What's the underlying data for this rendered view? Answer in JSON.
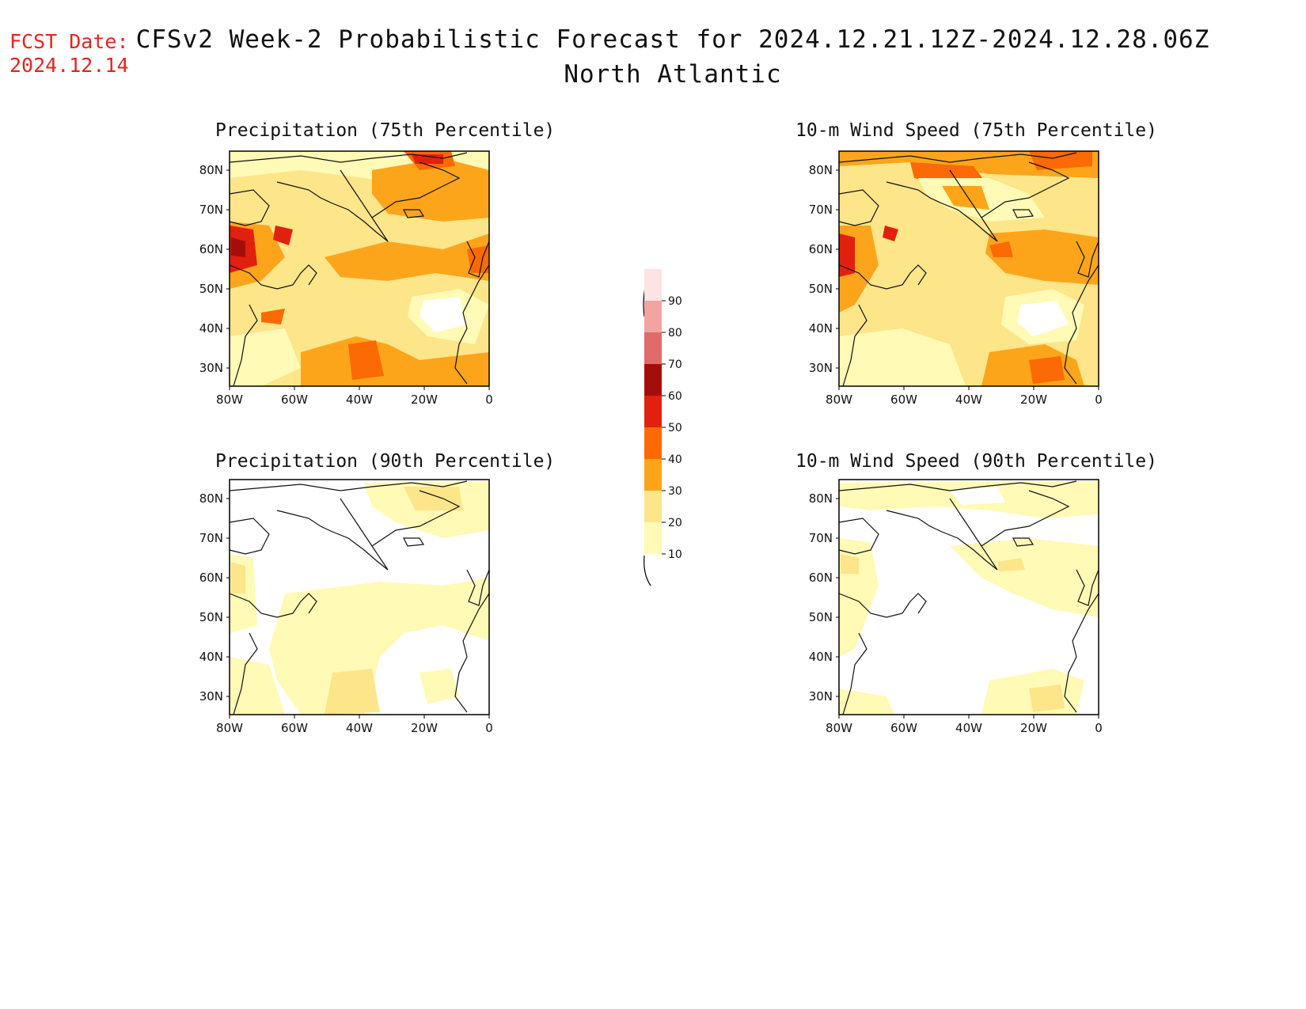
{
  "header": {
    "fcst_label": "FCST Date:",
    "fcst_date": "2024.12.14",
    "title": "CFSv2 Week-2 Probabilistic Forecast for 2024.12.21.12Z-2024.12.28.06Z",
    "region": "North Atlantic"
  },
  "panels": [
    {
      "title": "Precipitation (75th Percentile)"
    },
    {
      "title": "10-m Wind Speed (75th Percentile)"
    },
    {
      "title": "Precipitation (90th Percentile)"
    },
    {
      "title": "10-m Wind Speed (90th Percentile)"
    }
  ],
  "axes": {
    "lat_labels": [
      "80N",
      "70N",
      "60N",
      "50N",
      "40N",
      "30N"
    ],
    "lon_labels": [
      "80W",
      "60W",
      "40W",
      "20W",
      "0"
    ]
  },
  "colorbar": {
    "levels": [
      "10",
      "20",
      "30",
      "40",
      "50",
      "60",
      "70",
      "80",
      "90"
    ],
    "colors": [
      "#fffab5",
      "#fde58a",
      "#fca51b",
      "#fb6a04",
      "#e2200e",
      "#a40e0a",
      "#e06b6b",
      "#f4a3a3",
      "#fde3e3"
    ]
  }
}
